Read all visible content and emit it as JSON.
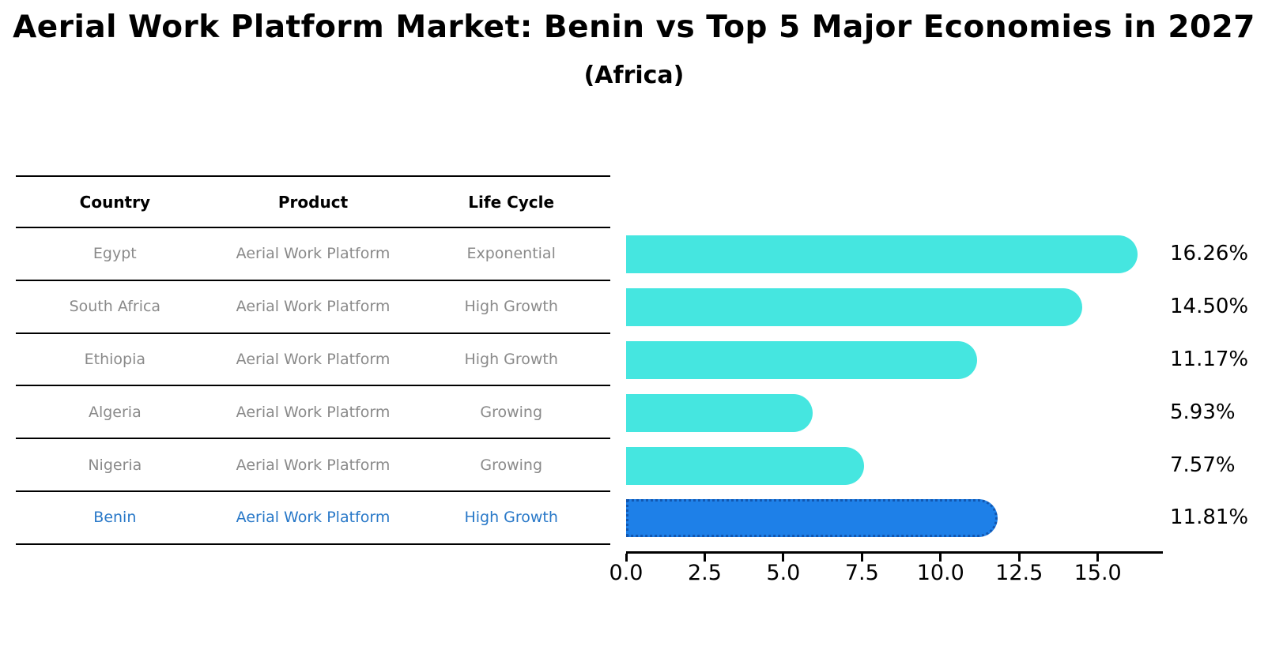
{
  "title": "Aerial Work Platform Market: Benin vs Top 5 Major Economies in 2027",
  "subtitle": "(Africa)",
  "table": {
    "headers": [
      "Country",
      "Product",
      "Life Cycle"
    ],
    "rows": [
      {
        "country": "Egypt",
        "product": "Aerial Work Platform",
        "life_cycle": "Exponential",
        "highlight": false
      },
      {
        "country": "South Africa",
        "product": "Aerial Work Platform",
        "life_cycle": "High Growth",
        "highlight": false
      },
      {
        "country": "Ethiopia",
        "product": "Aerial Work Platform",
        "life_cycle": "High Growth",
        "highlight": false
      },
      {
        "country": "Algeria",
        "product": "Aerial Work Platform",
        "life_cycle": "Growing",
        "highlight": false
      },
      {
        "country": "Nigeria",
        "product": "Aerial Work Platform",
        "life_cycle": "Growing",
        "highlight": false
      },
      {
        "country": "Benin",
        "product": "Aerial Work Platform",
        "life_cycle": "High Growth",
        "highlight": true
      }
    ]
  },
  "chart_data": {
    "type": "bar",
    "orientation": "horizontal",
    "categories": [
      "Egypt",
      "South Africa",
      "Ethiopia",
      "Algeria",
      "Nigeria",
      "Benin"
    ],
    "values": [
      16.26,
      14.5,
      11.17,
      5.93,
      7.57,
      11.81
    ],
    "value_labels": [
      "16.26%",
      "14.50%",
      "11.17%",
      "5.93%",
      "7.57%",
      "11.81%"
    ],
    "x_ticks": [
      0.0,
      2.5,
      5.0,
      7.5,
      10.0,
      12.5,
      15.0
    ],
    "x_tick_labels": [
      "0.0",
      "2.5",
      "5.0",
      "7.5",
      "10.0",
      "12.5",
      "15.0"
    ],
    "xlim": [
      0,
      17.07
    ],
    "grid": false,
    "legend": "none",
    "highlight_index": 5
  },
  "colors": {
    "bar": "#45E6E0",
    "highlight_bar": "#1E80E8",
    "highlight_edge": "#1257B0",
    "highlight_text": "#2878C8",
    "table_text": "#8a8a8a",
    "axis": "#000000"
  }
}
